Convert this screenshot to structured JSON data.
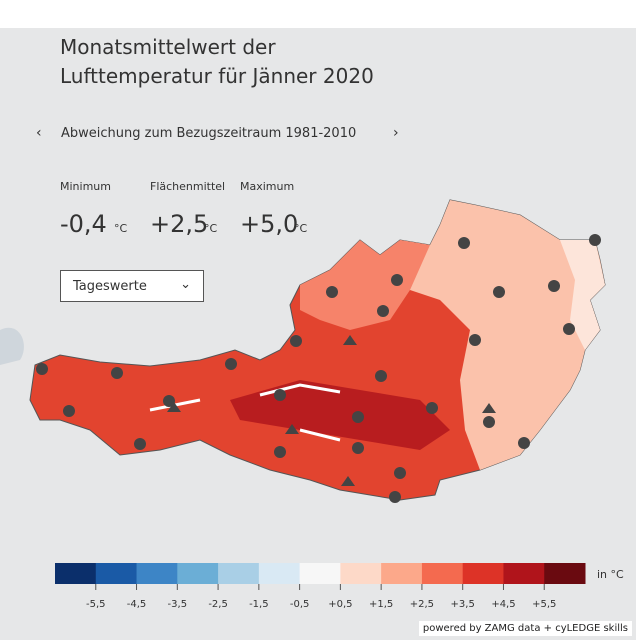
{
  "header": {
    "title": [
      "Monatsmittelwert der",
      "Lufttemperatur für Jänner 2020"
    ],
    "subtitle": "Abweichung zum Bezugszeitraum 1981-2010"
  },
  "stats": [
    {
      "label": "Minimum",
      "value": "-0,4",
      "unit": "°C"
    },
    {
      "label": "Flächenmittel",
      "value": "+2,5",
      "unit": "°C"
    },
    {
      "label": "Maximum",
      "value": "+5,0",
      "unit": "°C"
    }
  ],
  "dropdown": "Tageswerte",
  "legend": {
    "colors": [
      "#0b2f6b",
      "#1a5aa6",
      "#3d85c6",
      "#6baed6",
      "#a9cfe6",
      "#d9e9f4",
      "#f7f7f7",
      "#fdd9c8",
      "#fca88a",
      "#f46a4f",
      "#dd3327",
      "#b0141b",
      "#6a0a10"
    ],
    "labels": [
      "-5,5",
      "-4,5",
      "-3,5",
      "-2,5",
      "-1,5",
      "-0,5",
      "+0,5",
      "+1,5",
      "+2,5",
      "+3,5",
      "+4,5",
      "+5,5"
    ],
    "unit": "in °C"
  },
  "footer": "powered by ZAMG data + cyLEDGE skills"
}
